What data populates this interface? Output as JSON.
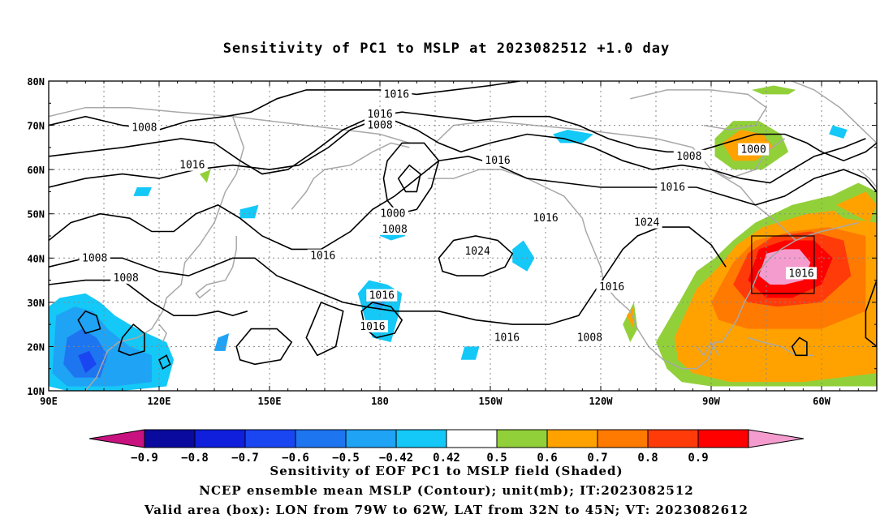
{
  "title": "Sensitivity of PC1 to MSLP at 2023082512 +1.0 day",
  "lat_labels": [
    "80N",
    "70N",
    "60N",
    "50N",
    "40N",
    "30N",
    "20N",
    "10N"
  ],
  "lon_labels": [
    "90E",
    "120E",
    "150E",
    "180",
    "150W",
    "120W",
    "90W",
    "60W"
  ],
  "contour_labels": [
    {
      "text": "1016",
      "lon": 184.5,
      "lat": 77.0
    },
    {
      "text": "1016",
      "lon": 180.0,
      "lat": 72.5
    },
    {
      "text": "1008",
      "lon": 180.0,
      "lat": 70.0
    },
    {
      "text": "1008",
      "lon": 116.0,
      "lat": 69.5
    },
    {
      "text": "1016",
      "lon": 129.0,
      "lat": 61.0
    },
    {
      "text": "1016",
      "lon": 212.0,
      "lat": 62.0
    },
    {
      "text": "1008",
      "lon": 264.0,
      "lat": 63.0
    },
    {
      "text": "1000",
      "lon": 281.5,
      "lat": 64.5
    },
    {
      "text": "1016",
      "lon": 259.5,
      "lat": 56.0
    },
    {
      "text": "1000",
      "lon": 183.5,
      "lat": 50.0
    },
    {
      "text": "1008",
      "lon": 184.0,
      "lat": 46.5
    },
    {
      "text": "1016",
      "lon": 225.0,
      "lat": 49.0
    },
    {
      "text": "1024",
      "lon": 252.5,
      "lat": 48.0
    },
    {
      "text": "1024",
      "lon": 206.5,
      "lat": 41.5
    },
    {
      "text": "1016",
      "lon": 164.5,
      "lat": 40.5
    },
    {
      "text": "1008",
      "lon": 102.5,
      "lat": 40.0
    },
    {
      "text": "1008",
      "lon": 111.0,
      "lat": 35.5
    },
    {
      "text": "1016",
      "lon": 180.5,
      "lat": 31.5
    },
    {
      "text": "1016",
      "lon": 178.0,
      "lat": 24.5
    },
    {
      "text": "1016",
      "lon": 214.5,
      "lat": 22.0
    },
    {
      "text": "1016",
      "lon": 243.0,
      "lat": 33.5
    },
    {
      "text": "1008",
      "lon": 237.0,
      "lat": 22.0
    },
    {
      "text": "1016",
      "lon": 294.5,
      "lat": 36.5
    }
  ],
  "valid_box": {
    "lon_from": 281,
    "lon_to": 298,
    "lat_from": 32,
    "lat_to": 45
  },
  "colorbar": {
    "tick_labels": [
      "-0.9",
      "-0.8",
      "-0.7",
      "-0.6",
      "-0.5",
      "-0.42",
      "0.42",
      "0.5",
      "0.6",
      "0.7",
      "0.8",
      "0.9"
    ],
    "colors": [
      "#c8127f",
      "#0a0a9e",
      "#0f1fdc",
      "#1a46f2",
      "#1e75f0",
      "#1fa3f5",
      "#14c8f7",
      "#ffffff",
      "#92d03a",
      "#ffa200",
      "#ff7a00",
      "#ff3b0a",
      "#ff0000",
      "#f59ccf"
    ]
  },
  "captions": [
    "Sensitivity of EOF PC1 to MSLP field (Shaded)",
    "NCEP ensemble mean MSLP (Contour); unit(mb); IT:2023082512",
    "Valid area (box): LON from 79W to 62W, LAT from 32N to 45N; VT: 2023082612"
  ]
}
